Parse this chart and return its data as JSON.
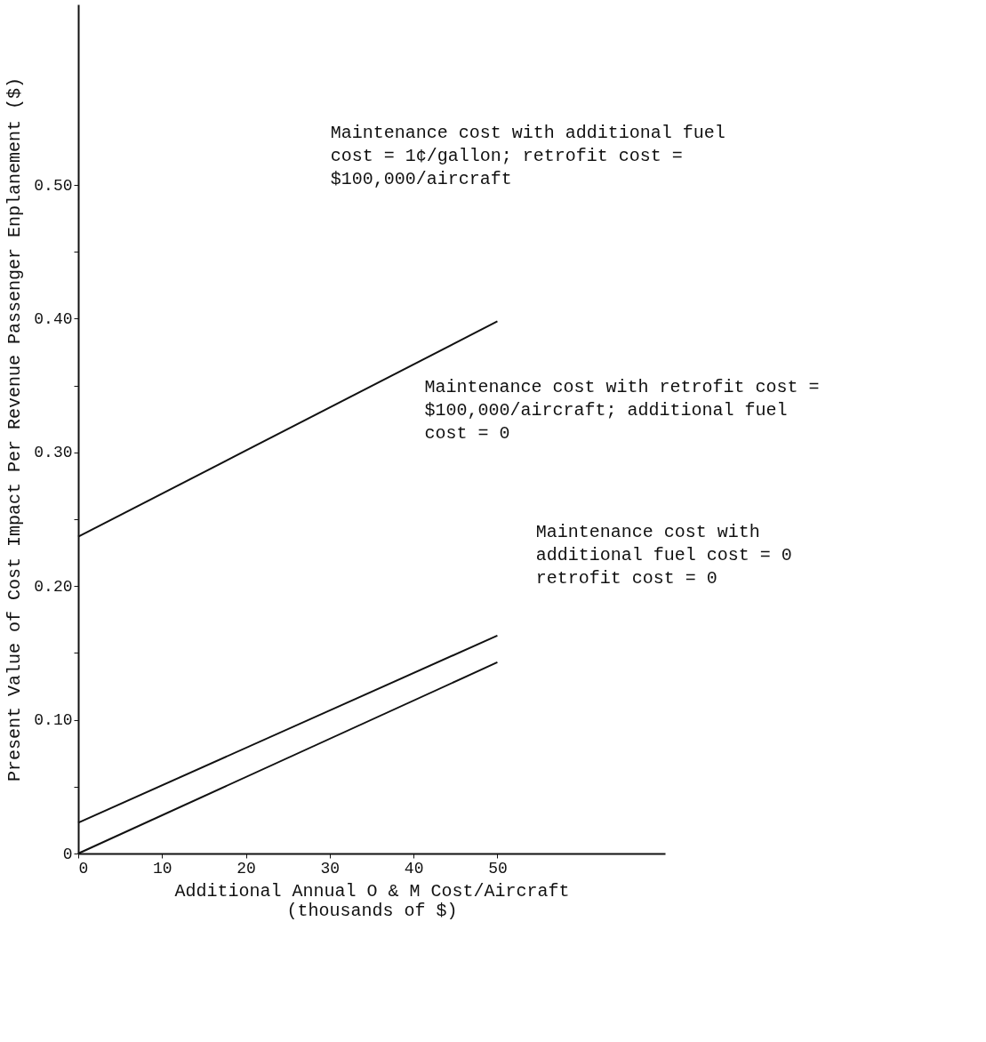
{
  "chart_data": {
    "type": "line",
    "xlabel": "Additional Annual O & M Cost/Aircraft\n(thousands of $)",
    "ylabel": "Present Value of Cost Impact Per Revenue Passenger Enplanement ($)",
    "x": [
      0,
      50
    ],
    "series": [
      {
        "color": "#111111",
        "values": [
          0.237,
          0.398
        ]
      },
      {
        "color": "#111111",
        "values": [
          0.023,
          0.163
        ]
      },
      {
        "color": "#111111",
        "values": [
          0,
          0.143
        ]
      }
    ],
    "xlim": [
      0,
      70
    ],
    "ylim": [
      0,
      0.635
    ],
    "xticks": [
      0,
      10,
      20,
      30,
      40,
      50
    ],
    "yticks": [
      {
        "value": 0,
        "label": "0"
      },
      {
        "value": 0.05,
        "label": null
      },
      {
        "value": 0.1,
        "label": "0.10"
      },
      {
        "value": 0.15,
        "label": null
      },
      {
        "value": 0.2,
        "label": "0.20"
      },
      {
        "value": 0.25,
        "label": null
      },
      {
        "value": 0.3,
        "label": "0.30"
      },
      {
        "value": 0.35,
        "label": null
      },
      {
        "value": 0.4,
        "label": "0.40"
      },
      {
        "value": 0.45,
        "label": null
      },
      {
        "value": 0.5,
        "label": "0.50"
      }
    ],
    "annotations": [
      "Maintenance cost with additional fuel\ncost = 1¢/gallon; retrofit cost =\n$100,000/aircraft",
      "Maintenance cost with retrofit cost =\n$100,000/aircraft; additional fuel\ncost = 0",
      "Maintenance cost with\nadditional fuel cost = 0\nretrofit cost = 0"
    ],
    "grid": false,
    "legend": false,
    "marker": "none",
    "line_style": "solid"
  }
}
